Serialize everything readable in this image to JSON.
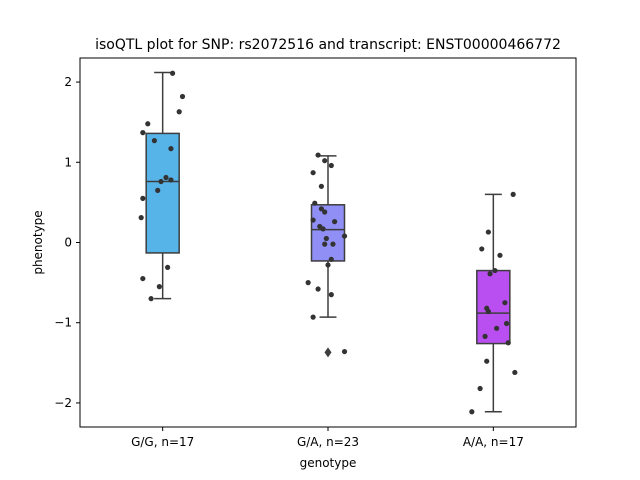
{
  "chart_data": {
    "type": "box",
    "title": "isoQTL plot for SNP: rs2072516 and transcript: ENST00000466772",
    "xlabel": "genotype",
    "ylabel": "phenotype",
    "ylim": [
      -2.3,
      2.3
    ],
    "yticks": [
      2,
      1,
      0,
      -1,
      -2
    ],
    "ytick_labels": [
      "2",
      "1",
      "0",
      "−1",
      "−2"
    ],
    "grid": false,
    "categories": [
      "G/G, n=17",
      "G/A, n=23",
      "A/A, n=17"
    ],
    "box_colors": [
      "#56b4e9",
      "#8f8ff6",
      "#b94ff0"
    ],
    "boxes": [
      {
        "q1": -0.13,
        "median": 0.76,
        "q3": 1.36,
        "whisker_low": -0.7,
        "whisker_high": 2.12,
        "outliers": []
      },
      {
        "q1": -0.23,
        "median": 0.16,
        "q3": 0.47,
        "whisker_low": -0.93,
        "whisker_high": 1.08,
        "outliers": [
          -1.37
        ]
      },
      {
        "q1": -1.26,
        "median": -0.88,
        "q3": -0.35,
        "whisker_low": -2.11,
        "whisker_high": 0.6,
        "outliers": []
      }
    ],
    "points": [
      {
        "x_offset": [
          0.06,
          0.12,
          -0.12,
          -0.09,
          0.02,
          0.05,
          -0.03,
          -0.12,
          -0.13,
          -0.01,
          0.05,
          0.1,
          -0.12,
          -0.02,
          -0.05,
          0.03,
          -0.07
        ],
        "y": [
          2.11,
          1.82,
          1.37,
          1.48,
          0.81,
          0.78,
          0.65,
          0.55,
          0.31,
          0.76,
          1.17,
          1.63,
          -0.45,
          -0.55,
          1.27,
          -0.31,
          -0.7
        ]
      },
      {
        "x_offset": [
          -0.06,
          -0.02,
          0.02,
          -0.09,
          -0.04,
          -0.08,
          0.1,
          -0.04,
          -0.02,
          0.04,
          0.03,
          -0.01,
          -0.09,
          -0.03,
          -0.05,
          0.02,
          0.1,
          -0.02,
          -0.12,
          0.0,
          -0.09,
          -0.06,
          0.02
        ],
        "y": [
          1.09,
          1.02,
          0.96,
          0.87,
          0.7,
          0.49,
          0.08,
          0.42,
          0.38,
          0.26,
          -0.02,
          0.05,
          0.28,
          0.17,
          0.2,
          -0.21,
          -1.36,
          -0.02,
          -0.5,
          -0.28,
          -0.93,
          -0.58,
          -0.65
        ]
      },
      {
        "x_offset": [
          0.12,
          -0.03,
          0.04,
          -0.07,
          0.01,
          -0.02,
          -0.04,
          0.07,
          -0.03,
          0.08,
          0.02,
          -0.05,
          0.09,
          -0.04,
          0.13,
          -0.08,
          -0.13
        ],
        "y": [
          0.6,
          0.13,
          -0.16,
          -0.08,
          -0.35,
          -0.39,
          -0.82,
          -0.75,
          -0.86,
          -1.01,
          -1.07,
          -1.17,
          -1.25,
          -1.48,
          -1.62,
          -1.82,
          -2.11
        ]
      }
    ]
  }
}
